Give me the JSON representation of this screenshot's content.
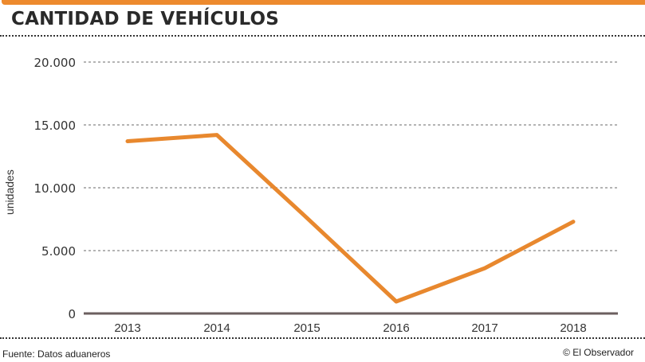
{
  "header": {
    "title": "CANTIDAD DE VEHÍCULOS"
  },
  "footer": {
    "source": "Fuente: Datos aduaneros",
    "credit": "© El Observador"
  },
  "colors": {
    "accent": "#ed8a2e",
    "line": "#e8882e",
    "grid": "#888888",
    "axis": "#6b5f5f",
    "text": "#333333"
  },
  "chart_data": {
    "type": "line",
    "title": "CANTIDAD DE VEHÍCULOS",
    "xlabel": "",
    "ylabel": "unidades",
    "categories": [
      "2013",
      "2014",
      "2015",
      "2016",
      "2017",
      "2018"
    ],
    "series": [
      {
        "name": "Cantidad de vehículos",
        "values": [
          13700,
          14200,
          7600,
          950,
          3600,
          7300
        ]
      }
    ],
    "ylim": [
      0,
      20000
    ],
    "yticks": [
      0,
      5000,
      10000,
      15000,
      20000
    ],
    "ytick_labels": [
      "0",
      "5.000",
      "10.000",
      "15.000",
      "20.000"
    ],
    "grid": true,
    "legend": "none"
  }
}
